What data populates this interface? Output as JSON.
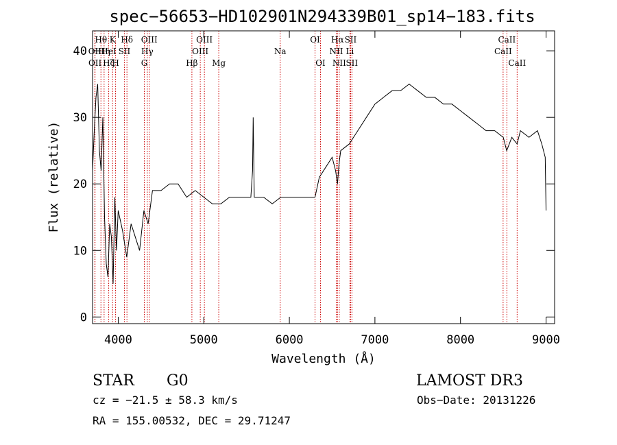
{
  "chart_data": {
    "type": "line",
    "title": "spec−56653−HD102901N294339B01_sp14−183.fits",
    "xlabel": "Wavelength (Å)",
    "ylabel": "Flux (relative)",
    "xlim": [
      3700,
      9100
    ],
    "ylim": [
      -1,
      43
    ],
    "x_ticks": [
      4000,
      5000,
      6000,
      7000,
      8000,
      9000
    ],
    "y_ticks": [
      0,
      10,
      20,
      30,
      40
    ],
    "grid": false,
    "series": [
      {
        "x": [
          3700,
          3720,
          3740,
          3760,
          3780,
          3800,
          3820,
          3840,
          3860,
          3880,
          3900,
          3920,
          3940,
          3960,
          3980,
          4000,
          4050,
          4100,
          4150,
          4200,
          4250,
          4300,
          4350,
          4400,
          4500,
          4600,
          4700,
          4800,
          4900,
          5000,
          5100,
          5200,
          5300,
          5400,
          5500,
          5550,
          5570,
          5577,
          5590,
          5600,
          5700,
          5800,
          5900,
          6000,
          6100,
          6200,
          6300,
          6350,
          6400,
          6500,
          6540,
          6563,
          6580,
          6600,
          6700,
          6800,
          6900,
          7000,
          7100,
          7200,
          7300,
          7400,
          7500,
          7600,
          7700,
          7800,
          7900,
          8000,
          8100,
          8200,
          8300,
          8400,
          8500,
          8540,
          8600,
          8662,
          8700,
          8800,
          8900,
          8950,
          8990,
          9000
        ],
        "y": [
          22,
          28,
          33,
          35,
          25,
          22,
          30,
          15,
          8,
          6,
          14,
          12,
          5,
          18,
          10,
          16,
          13,
          9,
          14,
          12,
          10,
          16,
          14,
          19,
          19,
          20,
          20,
          18,
          19,
          18,
          17,
          17,
          18,
          18,
          18,
          18,
          22,
          30,
          18,
          18,
          18,
          17,
          18,
          18,
          18,
          18,
          18,
          21,
          22,
          24,
          22,
          20,
          23,
          25,
          26,
          28,
          30,
          32,
          33,
          34,
          34,
          35,
          34,
          33,
          33,
          32,
          32,
          31,
          30,
          29,
          28,
          28,
          27,
          25,
          27,
          26,
          28,
          27,
          28,
          26,
          24,
          16
        ]
      }
    ],
    "line_markers": [
      {
        "label": "Hθ",
        "wavelength": 3798,
        "row": 0
      },
      {
        "label": "K",
        "wavelength": 3934,
        "row": 0
      },
      {
        "label": "Hδ",
        "wavelength": 4102,
        "row": 0
      },
      {
        "label": "OIII",
        "wavelength": 4363,
        "row": 0
      },
      {
        "label": "OIII",
        "wavelength": 5007,
        "row": 0
      },
      {
        "label": "OI",
        "wavelength": 6300,
        "row": 0
      },
      {
        "label": "Hα",
        "wavelength": 6563,
        "row": 0
      },
      {
        "label": "SII",
        "wavelength": 6716,
        "row": 0
      },
      {
        "label": "CaII",
        "wavelength": 8542,
        "row": 0
      },
      {
        "label": "OII",
        "wavelength": 3727,
        "row": 1
      },
      {
        "label": "Hη",
        "wavelength": 3835,
        "row": 1
      },
      {
        "label": "HeI",
        "wavelength": 3889,
        "row": 1
      },
      {
        "label": "SII",
        "wavelength": 4072,
        "row": 1
      },
      {
        "label": "Hγ",
        "wavelength": 4340,
        "row": 1
      },
      {
        "label": "OIII",
        "wavelength": 4959,
        "row": 1
      },
      {
        "label": "Na",
        "wavelength": 5893,
        "row": 1
      },
      {
        "label": "NII",
        "wavelength": 6548,
        "row": 1
      },
      {
        "label": "Li",
        "wavelength": 6708,
        "row": 1
      },
      {
        "label": "CaII",
        "wavelength": 8498,
        "row": 1
      },
      {
        "label": "OII",
        "wavelength": 3729,
        "row": 2
      },
      {
        "label": "Hζ",
        "wavelength": 3889,
        "row": 2
      },
      {
        "label": "H",
        "wavelength": 3969,
        "row": 2
      },
      {
        "label": "G",
        "wavelength": 4305,
        "row": 2
      },
      {
        "label": "Hβ",
        "wavelength": 4861,
        "row": 2
      },
      {
        "label": "Mg",
        "wavelength": 5175,
        "row": 2
      },
      {
        "label": "OI",
        "wavelength": 6364,
        "row": 2
      },
      {
        "label": "NII",
        "wavelength": 6583,
        "row": 2
      },
      {
        "label": "SII",
        "wavelength": 6731,
        "row": 2
      },
      {
        "label": "CaII",
        "wavelength": 8662,
        "row": 2
      }
    ]
  },
  "info": {
    "object_class": "STAR",
    "subclass": "G0",
    "survey": "LAMOST DR3",
    "cz": "cz = −21.5 ± 58.3 km/s",
    "obs_date": "Obs−Date: 20131226",
    "radec": "RA = 155.00532, DEC =  29.71247"
  },
  "colors": {
    "spectrum": "#000000",
    "line_marker": "#cc0000"
  }
}
